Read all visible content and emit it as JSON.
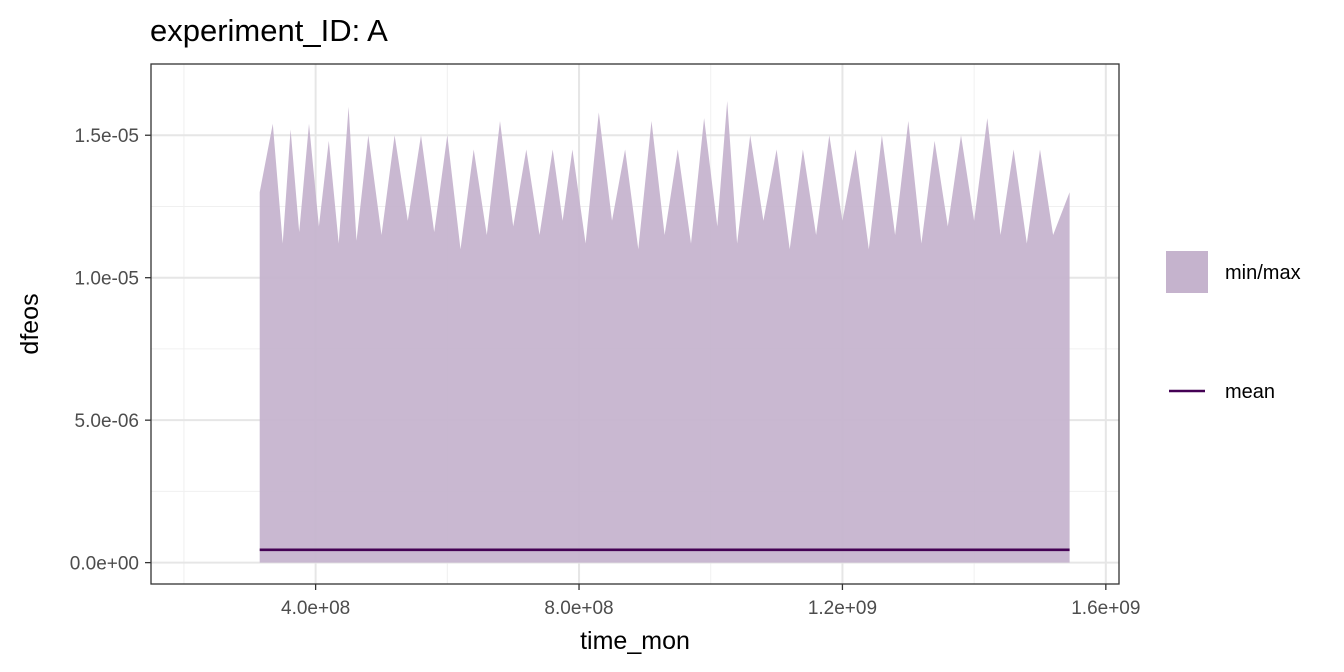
{
  "chart_data": {
    "type": "area",
    "title": "experiment_ID: A",
    "xlabel": "time_mon",
    "ylabel": "dfeos",
    "xlim": [
      150000000,
      1620000000
    ],
    "ylim": [
      -7.5e-07,
      1.75e-05
    ],
    "x_ticks": [
      {
        "value": 400000000,
        "label": "4.0e+08"
      },
      {
        "value": 800000000,
        "label": "8.0e+08"
      },
      {
        "value": 1200000000,
        "label": "1.2e+09"
      },
      {
        "value": 1600000000,
        "label": "1.6e+09"
      }
    ],
    "y_ticks": [
      {
        "value": 0,
        "label": "0.0e+00"
      },
      {
        "value": 5e-06,
        "label": "5.0e-06"
      },
      {
        "value": 1e-05,
        "label": "1.0e-05"
      },
      {
        "value": 1.5e-05,
        "label": "1.5e-05"
      }
    ],
    "grid": true,
    "legend_position": "right",
    "series": [
      {
        "name": "min/max",
        "kind": "ribbon",
        "color": "#c5b3cd",
        "x": [
          315000000,
          335000000,
          350000000,
          362000000,
          375000000,
          390000000,
          405000000,
          420000000,
          435000000,
          450000000,
          462000000,
          480000000,
          500000000,
          520000000,
          540000000,
          560000000,
          580000000,
          600000000,
          620000000,
          640000000,
          660000000,
          680000000,
          700000000,
          720000000,
          740000000,
          760000000,
          775000000,
          790000000,
          810000000,
          830000000,
          850000000,
          870000000,
          890000000,
          910000000,
          930000000,
          950000000,
          970000000,
          990000000,
          1010000000,
          1025000000,
          1040000000,
          1060000000,
          1080000000,
          1100000000,
          1120000000,
          1140000000,
          1160000000,
          1180000000,
          1200000000,
          1220000000,
          1240000000,
          1260000000,
          1280000000,
          1300000000,
          1320000000,
          1340000000,
          1360000000,
          1380000000,
          1400000000,
          1420000000,
          1440000000,
          1460000000,
          1480000000,
          1500000000,
          1520000000,
          1545000000
        ],
        "y_min": [
          0,
          0,
          0,
          0,
          0,
          0,
          0,
          0,
          0,
          0,
          0,
          0,
          0,
          0,
          0,
          0,
          0,
          0,
          0,
          0,
          0,
          0,
          0,
          0,
          0,
          0,
          0,
          0,
          0,
          0,
          0,
          0,
          0,
          0,
          0,
          0,
          0,
          0,
          0,
          0,
          0,
          0,
          0,
          0,
          0,
          0,
          0,
          0,
          0,
          0,
          0,
          0,
          0,
          0,
          0,
          0,
          0,
          0,
          0,
          0,
          0,
          0,
          0,
          0,
          0,
          0
        ],
        "y_max": [
          1.3e-05,
          1.54e-05,
          1.12e-05,
          1.52e-05,
          1.16e-05,
          1.54e-05,
          1.18e-05,
          1.48e-05,
          1.12e-05,
          1.6e-05,
          1.13e-05,
          1.5e-05,
          1.15e-05,
          1.5e-05,
          1.2e-05,
          1.5e-05,
          1.16e-05,
          1.5e-05,
          1.1e-05,
          1.45e-05,
          1.15e-05,
          1.55e-05,
          1.18e-05,
          1.45e-05,
          1.15e-05,
          1.45e-05,
          1.2e-05,
          1.45e-05,
          1.12e-05,
          1.58e-05,
          1.2e-05,
          1.45e-05,
          1.1e-05,
          1.55e-05,
          1.15e-05,
          1.45e-05,
          1.12e-05,
          1.56e-05,
          1.18e-05,
          1.62e-05,
          1.12e-05,
          1.5e-05,
          1.2e-05,
          1.45e-05,
          1.1e-05,
          1.45e-05,
          1.15e-05,
          1.5e-05,
          1.2e-05,
          1.45e-05,
          1.1e-05,
          1.5e-05,
          1.15e-05,
          1.55e-05,
          1.12e-05,
          1.48e-05,
          1.18e-05,
          1.5e-05,
          1.2e-05,
          1.56e-05,
          1.15e-05,
          1.45e-05,
          1.12e-05,
          1.45e-05,
          1.15e-05,
          1.3e-05
        ]
      },
      {
        "name": "mean",
        "kind": "line",
        "color": "#440154",
        "x": [
          315000000,
          1545000000
        ],
        "y": [
          4.5e-07,
          4.5e-07
        ]
      }
    ]
  }
}
